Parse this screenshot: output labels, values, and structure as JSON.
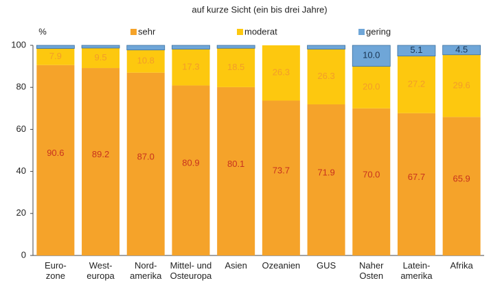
{
  "chart_data": {
    "type": "stacked_bar",
    "title": "auf kurze Sicht (ein bis drei Jahre)",
    "y_label": "%",
    "categories": [
      "Euro-\nzone",
      "West-\neuropa",
      "Nord-\namerika",
      "Mittel- und\nOsteuropa",
      "Asien",
      "Ozeanien",
      "GUS",
      "Naher\nOsten",
      "Latein-\namerika",
      "Afrika"
    ],
    "series": [
      {
        "name": "sehr",
        "color": "#f5a32a",
        "label_color": "#c8321e",
        "values": [
          90.6,
          89.2,
          87.0,
          80.9,
          80.1,
          73.7,
          71.9,
          70.0,
          67.7,
          65.9
        ],
        "value_labels": [
          "90.6",
          "89.2",
          "87.0",
          "80.9",
          "80.1",
          "73.7",
          "71.9",
          "70.0",
          "67.7",
          "65.9"
        ]
      },
      {
        "name": "moderat",
        "color": "#fdc80f",
        "label_color": "#f39c2a",
        "values": [
          7.9,
          9.5,
          10.8,
          17.3,
          18.5,
          26.3,
          26.3,
          20.0,
          27.2,
          29.6
        ],
        "value_labels": [
          "7.9",
          "9.5",
          "10.8",
          "17.3",
          "18.5",
          "26.3",
          "26.3",
          "20.0",
          "27.2",
          "29.6"
        ]
      },
      {
        "name": "gering",
        "color": "#6fa6d8",
        "label_color": "#1a3553",
        "values": [
          1.5,
          1.3,
          2.2,
          1.8,
          1.4,
          0,
          1.8,
          10.0,
          5.1,
          4.5
        ],
        "value_labels": [
          null,
          null,
          null,
          null,
          null,
          null,
          null,
          "10.0",
          "5.1",
          "4.5"
        ]
      }
    ],
    "ylim": [
      0,
      100
    ],
    "yticks": [
      0,
      20,
      40,
      60,
      80,
      100
    ],
    "grid": false
  }
}
